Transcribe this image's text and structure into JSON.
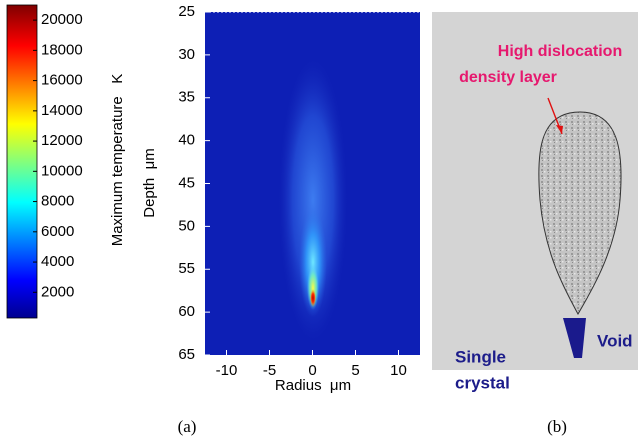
{
  "chart_data": {
    "type": "heatmap",
    "xlabel": "Radius  μm",
    "ylabel": "Depth  μm",
    "xlim": [
      -12.5,
      12.5
    ],
    "xticks": [
      -10,
      -5,
      0,
      5,
      10
    ],
    "ylim": [
      25,
      65
    ],
    "y_inverted": true,
    "yticks": [
      25,
      30,
      35,
      40,
      45,
      50,
      55,
      60,
      65
    ],
    "colorbar": {
      "label": "Maximum temperature   K",
      "lim": [
        300,
        21000
      ],
      "ticks": [
        2000,
        4000,
        6000,
        8000,
        10000,
        12000,
        14000,
        16000,
        18000,
        20000
      ]
    },
    "panel_label": "(a)"
  },
  "diagram": {
    "top_label": [
      "High dislocation",
      "density layer"
    ],
    "void_label": "Void",
    "crystal_label": [
      "Single",
      "crystal"
    ],
    "panel_label": "(b)"
  }
}
